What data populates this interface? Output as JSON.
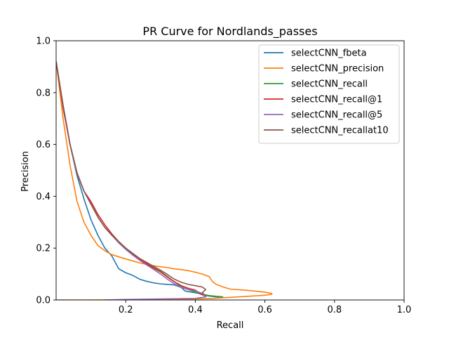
{
  "chart_data": {
    "type": "line",
    "title": "PR Curve for Nordlands_passes",
    "xlabel": "Recall",
    "ylabel": "Precision",
    "xlim": [
      0.0,
      1.0
    ],
    "ylim": [
      0.0,
      1.0
    ],
    "xticks": [
      "0.2",
      "0.4",
      "0.6",
      "0.8",
      "1.0"
    ],
    "xtick_values": [
      0.2,
      0.4,
      0.6,
      0.8,
      1.0
    ],
    "yticks": [
      "0.0",
      "0.2",
      "0.4",
      "0.6",
      "0.8",
      "1.0"
    ],
    "ytick_values": [
      0.0,
      0.2,
      0.4,
      0.6,
      0.8,
      1.0
    ],
    "grid": false,
    "legend_position": "top-right",
    "series": [
      {
        "name": "selectCNN_fbeta",
        "color": "#1f77b4",
        "x": [
          0.0,
          0.02,
          0.04,
          0.06,
          0.08,
          0.1,
          0.12,
          0.14,
          0.16,
          0.17,
          0.18,
          0.2,
          0.22,
          0.24,
          0.26,
          0.28,
          0.3,
          0.32,
          0.34,
          0.36,
          0.37,
          0.38,
          0.39,
          0.4,
          0.41,
          0.42,
          0.43,
          0.44,
          0.46,
          0.48
        ],
        "y": [
          0.92,
          0.75,
          0.6,
          0.48,
          0.39,
          0.31,
          0.25,
          0.2,
          0.17,
          0.145,
          0.12,
          0.105,
          0.095,
          0.08,
          0.072,
          0.066,
          0.062,
          0.06,
          0.058,
          0.048,
          0.035,
          0.032,
          0.03,
          0.028,
          0.025,
          0.02,
          0.017,
          0.015,
          0.012,
          0.01
        ]
      },
      {
        "name": "selectCNN_precision",
        "color": "#ff7f0e",
        "x": [
          0.0,
          0.02,
          0.04,
          0.05,
          0.06,
          0.08,
          0.1,
          0.12,
          0.14,
          0.16,
          0.2,
          0.24,
          0.28,
          0.3,
          0.32,
          0.34,
          0.36,
          0.38,
          0.4,
          0.42,
          0.44,
          0.45,
          0.46,
          0.48,
          0.5,
          0.54,
          0.58,
          0.6,
          0.62,
          0.62,
          0.6,
          0.55,
          0.5,
          0.45,
          0.4,
          0.3,
          0.1,
          0.0
        ],
        "y": [
          0.92,
          0.7,
          0.52,
          0.45,
          0.38,
          0.3,
          0.25,
          0.21,
          0.19,
          0.175,
          0.158,
          0.143,
          0.132,
          0.128,
          0.125,
          0.12,
          0.117,
          0.113,
          0.107,
          0.1,
          0.09,
          0.07,
          0.06,
          0.05,
          0.042,
          0.038,
          0.033,
          0.03,
          0.025,
          0.022,
          0.018,
          0.014,
          0.01,
          0.006,
          0.004,
          0.002,
          0.0,
          0.0
        ]
      },
      {
        "name": "selectCNN_recall",
        "color": "#2ca02c",
        "x": [
          0.0,
          0.02,
          0.04,
          0.06,
          0.08,
          0.1,
          0.12,
          0.14,
          0.16,
          0.18,
          0.2,
          0.22,
          0.24,
          0.26,
          0.28,
          0.3,
          0.32,
          0.34,
          0.36,
          0.38,
          0.4,
          0.42,
          0.44,
          0.46,
          0.48
        ],
        "y": [
          0.92,
          0.75,
          0.6,
          0.49,
          0.42,
          0.37,
          0.32,
          0.28,
          0.25,
          0.225,
          0.2,
          0.18,
          0.16,
          0.142,
          0.125,
          0.11,
          0.09,
          0.07,
          0.05,
          0.04,
          0.03,
          0.022,
          0.017,
          0.014,
          0.012
        ]
      },
      {
        "name": "selectCNN_recall@1",
        "color": "#d62728",
        "x": [
          0.0,
          0.02,
          0.04,
          0.06,
          0.08,
          0.1,
          0.12,
          0.14,
          0.16,
          0.18,
          0.2,
          0.22,
          0.24,
          0.26,
          0.28,
          0.3,
          0.32,
          0.34,
          0.36,
          0.38,
          0.4,
          0.41,
          0.42,
          0.43
        ],
        "y": [
          0.92,
          0.74,
          0.6,
          0.49,
          0.42,
          0.38,
          0.33,
          0.29,
          0.255,
          0.225,
          0.2,
          0.178,
          0.158,
          0.14,
          0.123,
          0.108,
          0.088,
          0.07,
          0.055,
          0.045,
          0.038,
          0.028,
          0.02,
          0.015
        ]
      },
      {
        "name": "selectCNN_recall@5",
        "color": "#9467bd",
        "x": [
          0.0,
          0.02,
          0.04,
          0.06,
          0.08,
          0.1,
          0.12,
          0.14,
          0.16,
          0.18,
          0.2,
          0.22,
          0.24,
          0.26,
          0.28,
          0.3,
          0.32,
          0.34,
          0.36,
          0.38,
          0.4,
          0.42,
          0.43,
          0.4,
          0.3,
          0.2,
          0.14
        ],
        "y": [
          0.92,
          0.75,
          0.6,
          0.49,
          0.42,
          0.37,
          0.32,
          0.28,
          0.25,
          0.22,
          0.195,
          0.173,
          0.153,
          0.135,
          0.118,
          0.1,
          0.08,
          0.062,
          0.048,
          0.04,
          0.035,
          0.025,
          0.012,
          0.006,
          0.004,
          0.002,
          0.0
        ]
      },
      {
        "name": "selectCNN_recallat10",
        "color": "#8c564b",
        "x": [
          0.0,
          0.02,
          0.04,
          0.06,
          0.08,
          0.1,
          0.12,
          0.14,
          0.16,
          0.18,
          0.2,
          0.22,
          0.24,
          0.26,
          0.28,
          0.3,
          0.32,
          0.34,
          0.36,
          0.38,
          0.4,
          0.42,
          0.43,
          0.42,
          0.43
        ],
        "y": [
          0.92,
          0.75,
          0.6,
          0.49,
          0.42,
          0.37,
          0.32,
          0.28,
          0.25,
          0.225,
          0.2,
          0.18,
          0.16,
          0.145,
          0.13,
          0.115,
          0.098,
          0.08,
          0.068,
          0.06,
          0.055,
          0.05,
          0.04,
          0.028,
          0.015
        ]
      }
    ]
  }
}
